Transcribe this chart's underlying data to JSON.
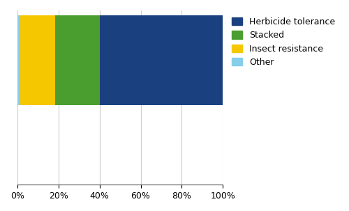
{
  "segments": [
    {
      "label": "Herbicide tolerance",
      "value": 0.6,
      "color": "#1B4080"
    },
    {
      "label": "Stacked",
      "value": 0.215,
      "color": "#4A9E2F"
    },
    {
      "label": "Insect resistance",
      "value": 0.17,
      "color": "#F5C700"
    },
    {
      "label": "Other",
      "value": 0.015,
      "color": "#87CEEB"
    }
  ],
  "xlim": [
    0,
    1
  ],
  "xticks": [
    0,
    0.2,
    0.4,
    0.6,
    0.8,
    1.0
  ],
  "xticklabels": [
    "0%",
    "20%",
    "40%",
    "60%",
    "80%",
    "100%"
  ],
  "background_color": "#ffffff",
  "grid_color": "#cccccc",
  "legend_fontsize": 9,
  "tick_fontsize": 9
}
